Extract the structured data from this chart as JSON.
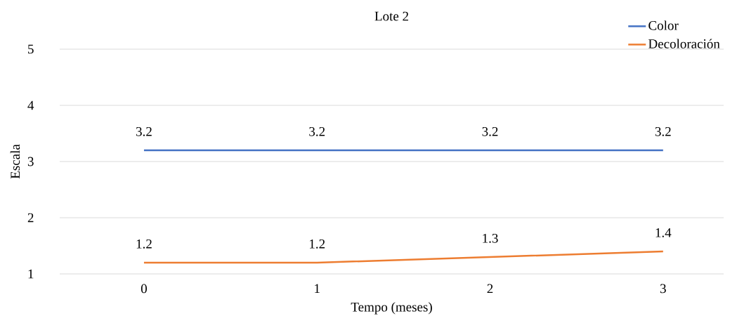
{
  "chart_data": {
    "type": "line",
    "title": "Lote 2",
    "xlabel": "Tempo (meses)",
    "ylabel": "Escala",
    "categories": [
      "0",
      "1",
      "2",
      "3"
    ],
    "series": [
      {
        "name": "Color",
        "color": "#4472c4",
        "values": [
          3.2,
          3.2,
          3.2,
          3.2
        ]
      },
      {
        "name": "Decoloración",
        "color": "#ed7d31",
        "values": [
          1.2,
          1.2,
          1.3,
          1.4
        ]
      }
    ],
    "ylim": [
      1,
      5
    ],
    "yticks": [
      1,
      2,
      3,
      4,
      5
    ],
    "grid": "y",
    "legend": "top right",
    "marker": "none",
    "line_style": "solid",
    "data_labels": true
  }
}
